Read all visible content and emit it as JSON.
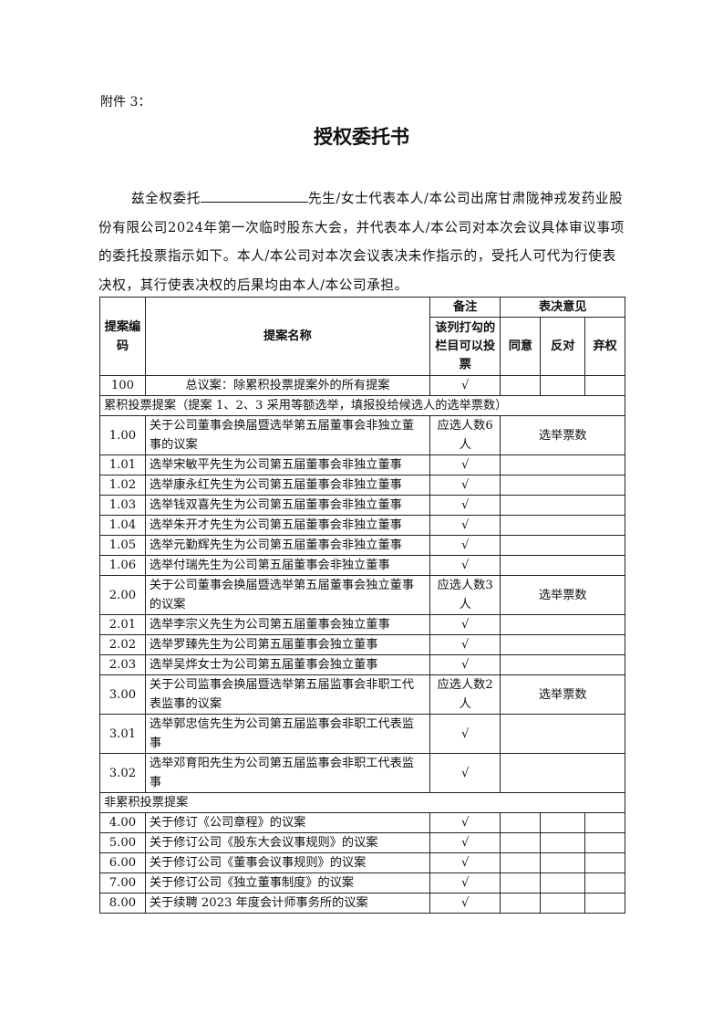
{
  "attachment_label": "附件 3：",
  "title": "授权委托书",
  "paragraph": {
    "prefix": "兹全权委托",
    "body": "先生/女士代表本人/本公司出席甘肃陇神戎发药业股份有限公司2024年第一次临时股东大会，并代表本人/本公司对本次会议具体审议事项的委托投票指示如下。本人/本公司对本次会议表决未作指示的，受托人可代为行使表决权，其行使表决权的后果均由本人/本公司承担。"
  },
  "table": {
    "headers": {
      "code": "提案编码",
      "name": "提案名称",
      "note": "备注",
      "note_sub": "该列打勾的栏目可以投票",
      "opinion": "表决意见",
      "agree": "同意",
      "oppose": "反对",
      "abstain": "弃权"
    },
    "check": "√",
    "votes_label": "选举票数",
    "rows": [
      {
        "type": "plain",
        "code": "100",
        "name": "总议案：除累积投票提案外的所有提案",
        "center": true
      },
      {
        "type": "section",
        "name": "累积投票提案（提案 1、2、3 采用等额选举，填报投给候选人的选举票数）"
      },
      {
        "type": "parent",
        "code": "1.00",
        "name": "关于公司董事会换届暨选举第五届董事会非独立董事的议案",
        "note": "应选人数6人"
      },
      {
        "type": "candidate",
        "code": "1.01",
        "name": "选举宋敏平先生为公司第五届董事会非独立董事"
      },
      {
        "type": "candidate",
        "code": "1.02",
        "name": "选举康永红先生为公司第五届董事会非独立董事"
      },
      {
        "type": "candidate",
        "code": "1.03",
        "name": "选举钱双喜先生为公司第五届董事会非独立董事"
      },
      {
        "type": "candidate",
        "code": "1.04",
        "name": "选举朱开才先生为公司第五届董事会非独立董事"
      },
      {
        "type": "candidate",
        "code": "1.05",
        "name": "选举元勤辉先生为公司第五届董事会非独立董事"
      },
      {
        "type": "candidate",
        "code": "1.06",
        "name": "选举付瑞先生为公司第五届董事会非独立董事"
      },
      {
        "type": "parent",
        "code": "2.00",
        "name": "关于公司董事会换届暨选举第五届董事会独立董事的议案",
        "note": "应选人数3人"
      },
      {
        "type": "candidate",
        "code": "2.01",
        "name": "选举李宗义先生为公司第五届董事会独立董事"
      },
      {
        "type": "candidate",
        "code": "2.02",
        "name": "选举罗臻先生为公司第五届董事会独立董事"
      },
      {
        "type": "candidate",
        "code": "2.03",
        "name": "选举吴烨女士为公司第五届董事会独立董事"
      },
      {
        "type": "parent",
        "code": "3.00",
        "name": "关于公司监事会换届暨选举第五届监事会非职工代表监事的议案",
        "note": "应选人数2人"
      },
      {
        "type": "candidate",
        "code": "3.01",
        "name": "选举郭忠信先生为公司第五届监事会非职工代表监事",
        "tall": true
      },
      {
        "type": "candidate",
        "code": "3.02",
        "name": "选举邓育阳先生为公司第五届监事会非职工代表监事",
        "tall": true
      },
      {
        "type": "section",
        "name": "非累积投票提案"
      },
      {
        "type": "plain",
        "code": "4.00",
        "name": "关于修订《公司章程》的议案"
      },
      {
        "type": "plain",
        "code": "5.00",
        "name": "关于修订公司《股东大会议事规则》的议案"
      },
      {
        "type": "plain",
        "code": "6.00",
        "name": "关于修订公司《董事会议事规则》的议案"
      },
      {
        "type": "plain",
        "code": "7.00",
        "name": "关于修订公司《独立董事制度》的议案"
      },
      {
        "type": "plain",
        "code": "8.00",
        "name": "关于续聘 2023 年度会计师事务所的议案"
      }
    ]
  }
}
